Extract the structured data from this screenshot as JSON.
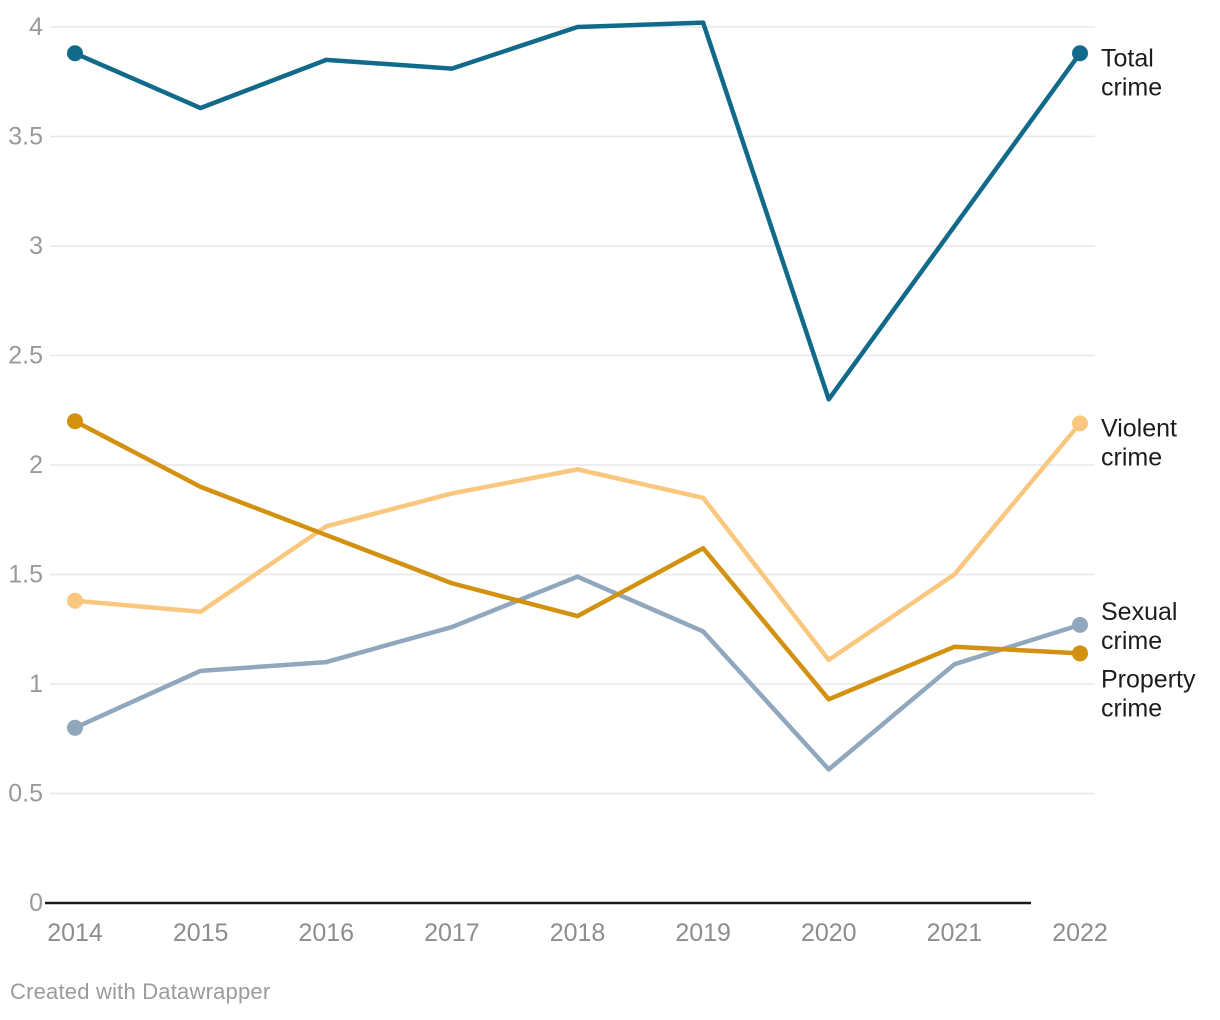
{
  "chart_data": {
    "type": "line",
    "x": [
      2014,
      2015,
      2016,
      2017,
      2018,
      2019,
      2020,
      2021,
      2022
    ],
    "series": [
      {
        "name": "Total crime",
        "color": "#126a8a",
        "values": [
          3.88,
          3.63,
          3.85,
          3.81,
          4.0,
          4.02,
          2.3,
          3.09,
          3.88
        ]
      },
      {
        "name": "Violent crime",
        "color": "#fac77e",
        "values": [
          1.38,
          1.33,
          1.72,
          1.87,
          1.98,
          1.85,
          1.11,
          1.5,
          2.19
        ]
      },
      {
        "name": "Sexual crime",
        "color": "#90a7bd",
        "values": [
          0.8,
          1.06,
          1.1,
          1.26,
          1.49,
          1.24,
          0.61,
          1.09,
          1.27
        ]
      },
      {
        "name": "Property crime",
        "color": "#d2910f",
        "values": [
          2.2,
          1.9,
          1.68,
          1.46,
          1.31,
          1.62,
          0.93,
          1.17,
          1.14
        ]
      }
    ],
    "ylim": [
      0,
      4
    ],
    "yticks": [
      0,
      0.5,
      1,
      1.5,
      2,
      2.5,
      3,
      3.5,
      4
    ],
    "xticks": [
      "2014",
      "2015",
      "2016",
      "2017",
      "2018",
      "2019",
      "2020",
      "2021",
      "2022"
    ],
    "grid": true,
    "legend_position": "right-end-of-lines",
    "title": "",
    "xlabel": "",
    "ylabel": ""
  },
  "colors": {
    "background": "#ffffff",
    "gridline": "#e8e8e8",
    "axis_line": "#1a1a1a",
    "y_tick_label": "#9a9a9a",
    "x_tick_label": "#8d8d8d",
    "series_label": "#1d1d1d",
    "footer_text": "#9b9b9b"
  },
  "footer": {
    "text": "Created with Datawrapper"
  }
}
